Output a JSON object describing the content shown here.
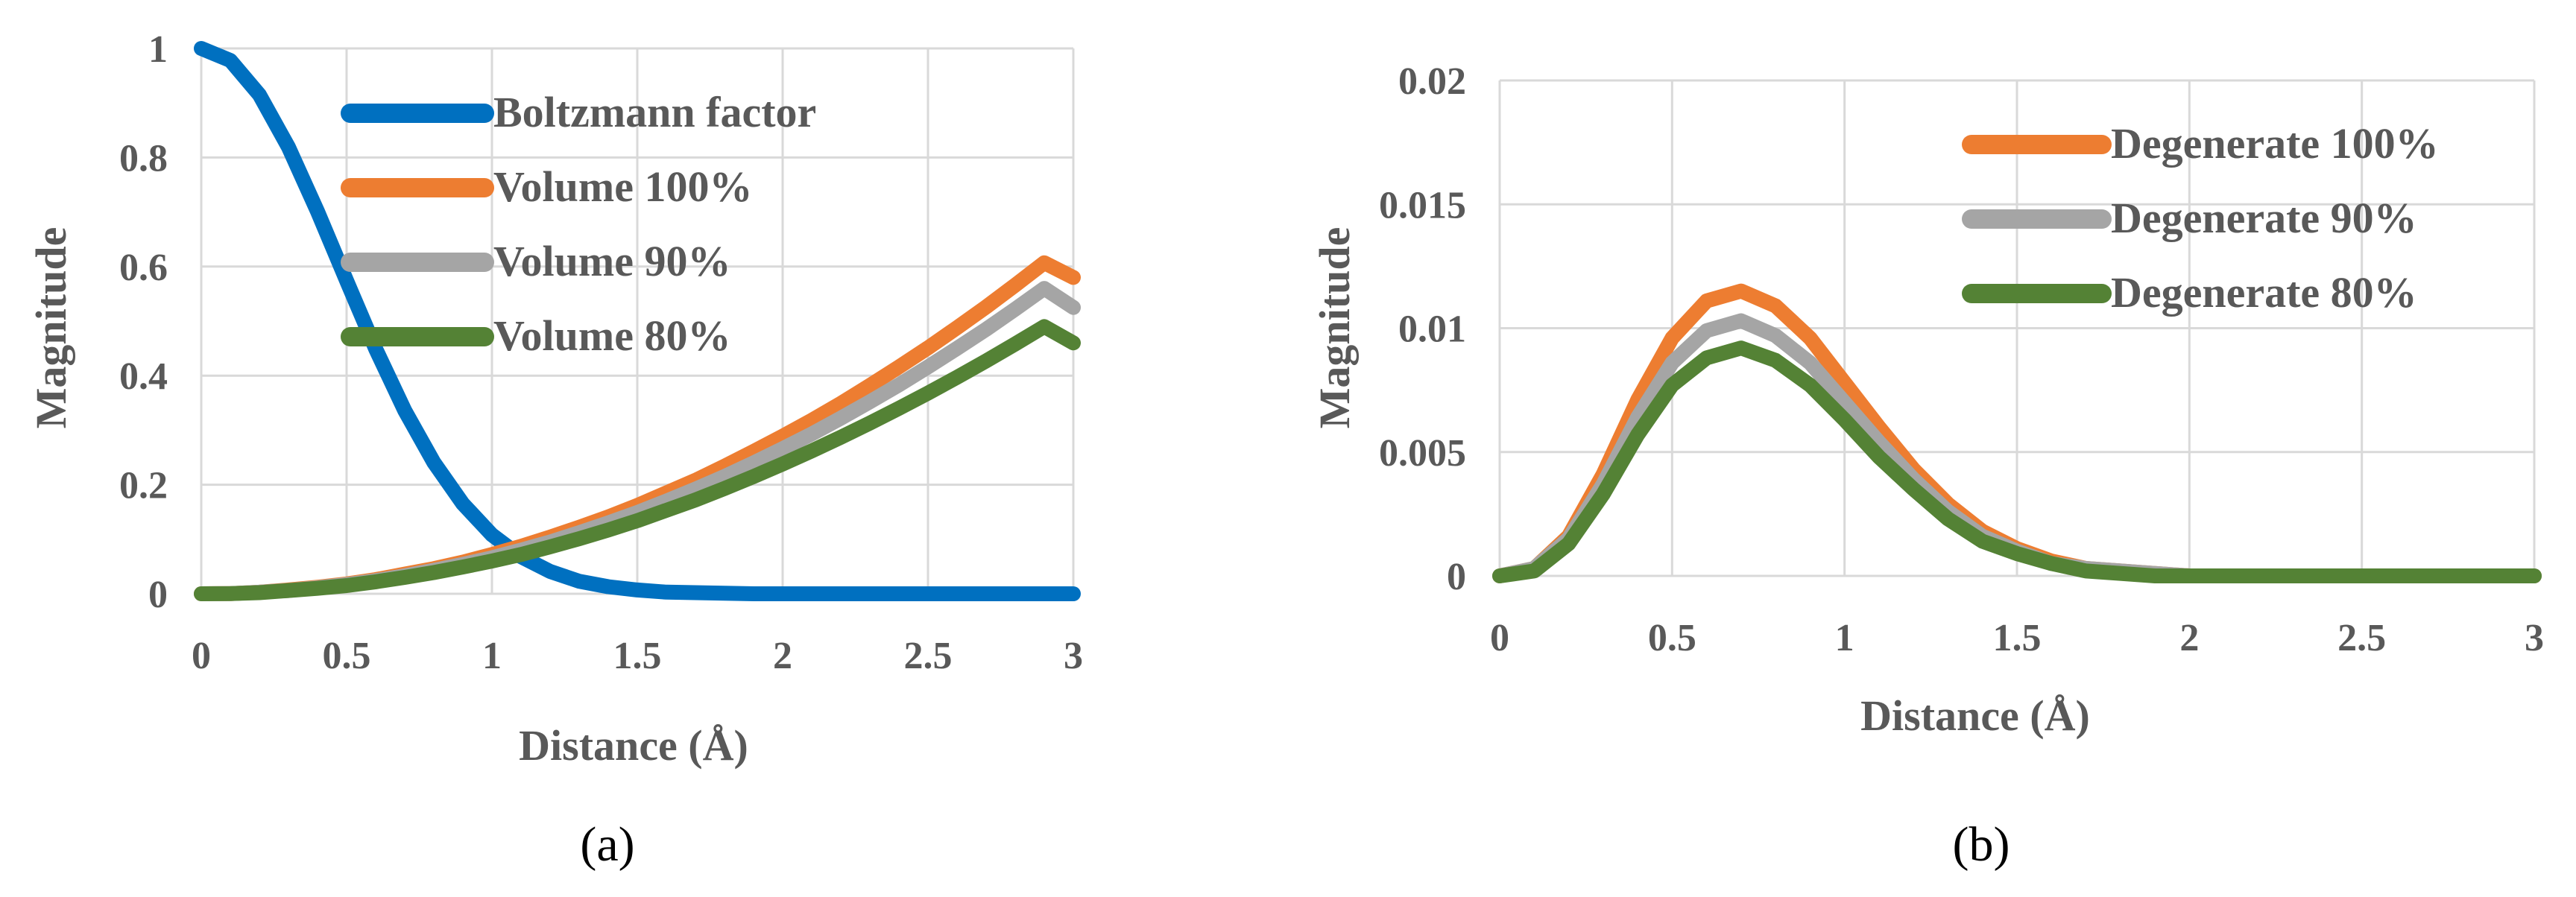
{
  "chart_data": [
    {
      "type": "line",
      "panel_label": "(a)",
      "xlabel": "Distance (Å)",
      "ylabel": "Magnitude",
      "xlim": [
        0,
        3
      ],
      "ylim": [
        0,
        1
      ],
      "xticks": [
        "0",
        "0.5",
        "1",
        "1.5",
        "2",
        "2.5",
        "3"
      ],
      "yticks": [
        "0",
        "0.2",
        "0.4",
        "0.6",
        "0.8",
        "1"
      ],
      "grid": true,
      "legend_position": "top-center",
      "x": [
        0,
        0.1,
        0.2,
        0.3,
        0.4,
        0.5,
        0.6,
        0.7,
        0.8,
        0.9,
        1.0,
        1.1,
        1.2,
        1.3,
        1.4,
        1.5,
        1.6,
        1.7,
        1.8,
        1.9,
        2.0,
        2.1,
        2.2,
        2.3,
        2.4,
        2.5,
        2.6,
        2.7,
        2.8,
        2.9,
        3.0
      ],
      "series": [
        {
          "name": "Boltzmann factor",
          "color": "#0070c0",
          "values": [
            1.0,
            0.978,
            0.915,
            0.819,
            0.701,
            0.574,
            0.449,
            0.336,
            0.241,
            0.165,
            0.108,
            0.068,
            0.041,
            0.023,
            0.013,
            0.007,
            0.003,
            0.002,
            0.001,
            0.0,
            0.0,
            0.0,
            0.0,
            0.0,
            0.0,
            0.0,
            0.0,
            0.0,
            0.0,
            0.0,
            0.0
          ]
        },
        {
          "name": "Volume 100%",
          "color": "#ed7d31",
          "values": [
            0.0,
            0.0003,
            0.003,
            0.007,
            0.012,
            0.018,
            0.026,
            0.036,
            0.046,
            0.058,
            0.072,
            0.087,
            0.104,
            0.122,
            0.141,
            0.162,
            0.185,
            0.208,
            0.234,
            0.261,
            0.289,
            0.318,
            0.349,
            0.382,
            0.416,
            0.451,
            0.488,
            0.526,
            0.566,
            0.607,
            0.58
          ]
        },
        {
          "name": "Volume 90%",
          "color": "#a5a5a5",
          "values": [
            0.0,
            0.0003,
            0.003,
            0.006,
            0.011,
            0.017,
            0.024,
            0.033,
            0.043,
            0.054,
            0.066,
            0.08,
            0.095,
            0.112,
            0.13,
            0.149,
            0.17,
            0.192,
            0.215,
            0.24,
            0.266,
            0.293,
            0.322,
            0.352,
            0.383,
            0.416,
            0.45,
            0.485,
            0.522,
            0.56,
            0.525
          ]
        },
        {
          "name": "Volume 80%",
          "color": "#548235",
          "values": [
            0.0,
            0.0003,
            0.002,
            0.006,
            0.01,
            0.015,
            0.022,
            0.03,
            0.039,
            0.049,
            0.06,
            0.072,
            0.086,
            0.101,
            0.117,
            0.134,
            0.153,
            0.172,
            0.193,
            0.215,
            0.238,
            0.262,
            0.287,
            0.313,
            0.34,
            0.368,
            0.397,
            0.427,
            0.458,
            0.49,
            0.46
          ]
        }
      ]
    },
    {
      "type": "line",
      "panel_label": "(b)",
      "xlabel": "Distance (Å)",
      "ylabel": "Magnitude",
      "xlim": [
        0,
        3
      ],
      "ylim": [
        0,
        0.02
      ],
      "xticks": [
        "0",
        "0.5",
        "1",
        "1.5",
        "2",
        "2.5",
        "3"
      ],
      "yticks": [
        "0",
        "0.005",
        "0.01",
        "0.015",
        "0.02"
      ],
      "grid": true,
      "legend_position": "top-right",
      "x": [
        0,
        0.1,
        0.2,
        0.3,
        0.4,
        0.5,
        0.6,
        0.7,
        0.8,
        0.9,
        1.0,
        1.1,
        1.2,
        1.3,
        1.4,
        1.5,
        1.6,
        1.7,
        1.8,
        1.9,
        2.0,
        2.2,
        2.4,
        2.6,
        2.8,
        3.0
      ],
      "series": [
        {
          "name": "Degenerate 100%",
          "color": "#ed7d31",
          "values": [
            0.0,
            0.0003,
            0.0016,
            0.0041,
            0.0071,
            0.0096,
            0.0111,
            0.0115,
            0.0109,
            0.0096,
            0.0078,
            0.006,
            0.0043,
            0.0029,
            0.0018,
            0.0011,
            0.0006,
            0.0003,
            0.0002,
            0.0001,
            0.0,
            0.0,
            0.0,
            0.0,
            0.0,
            0.0
          ]
        },
        {
          "name": "Degenerate 90%",
          "color": "#a5a5a5",
          "values": [
            0.0,
            0.0003,
            0.0015,
            0.0037,
            0.0064,
            0.0086,
            0.0099,
            0.0103,
            0.0097,
            0.0086,
            0.007,
            0.0054,
            0.0039,
            0.0026,
            0.0016,
            0.001,
            0.0005,
            0.0003,
            0.0002,
            0.0001,
            0.0,
            0.0,
            0.0,
            0.0,
            0.0,
            0.0
          ]
        },
        {
          "name": "Degenerate 80%",
          "color": "#548235",
          "values": [
            0.0,
            0.0002,
            0.0013,
            0.0033,
            0.0057,
            0.0077,
            0.0088,
            0.0092,
            0.0087,
            0.0077,
            0.0063,
            0.0048,
            0.0035,
            0.0023,
            0.0014,
            0.0009,
            0.0005,
            0.0002,
            0.0001,
            0.0,
            0.0,
            0.0,
            0.0,
            0.0,
            0.0,
            0.0
          ]
        }
      ]
    }
  ]
}
